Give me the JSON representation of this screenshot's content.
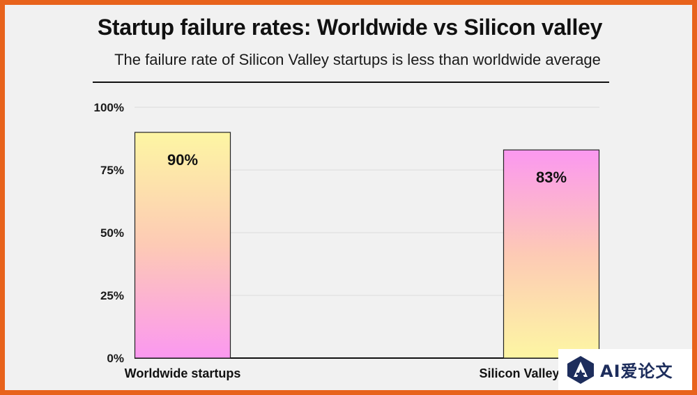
{
  "chart_data": {
    "type": "bar",
    "title": "Startup failure rates: Worldwide vs Silicon valley",
    "subtitle": "The failure rate of Silicon Valley startups is less than worldwide average",
    "categories": [
      "Worldwide startups",
      "Silicon Valley"
    ],
    "values": [
      90,
      83
    ],
    "data_labels": [
      "90%",
      "83%"
    ],
    "ylim": [
      0,
      100
    ],
    "yticks": [
      0,
      25,
      50,
      75,
      100
    ],
    "ytick_labels": [
      "0%",
      "25%",
      "50%",
      "75%",
      "100%"
    ],
    "grid": true,
    "legend": "none",
    "bar_gradients": [
      {
        "top": "#fdf6a3",
        "mid": "#fdcab5",
        "bottom": "#fb98f0"
      },
      {
        "top": "#fb98f0",
        "mid": "#fdcab5",
        "bottom": "#fdf6a3"
      }
    ]
  },
  "watermark": {
    "text": "AI爱论文",
    "logo": "ai-logo-icon"
  }
}
